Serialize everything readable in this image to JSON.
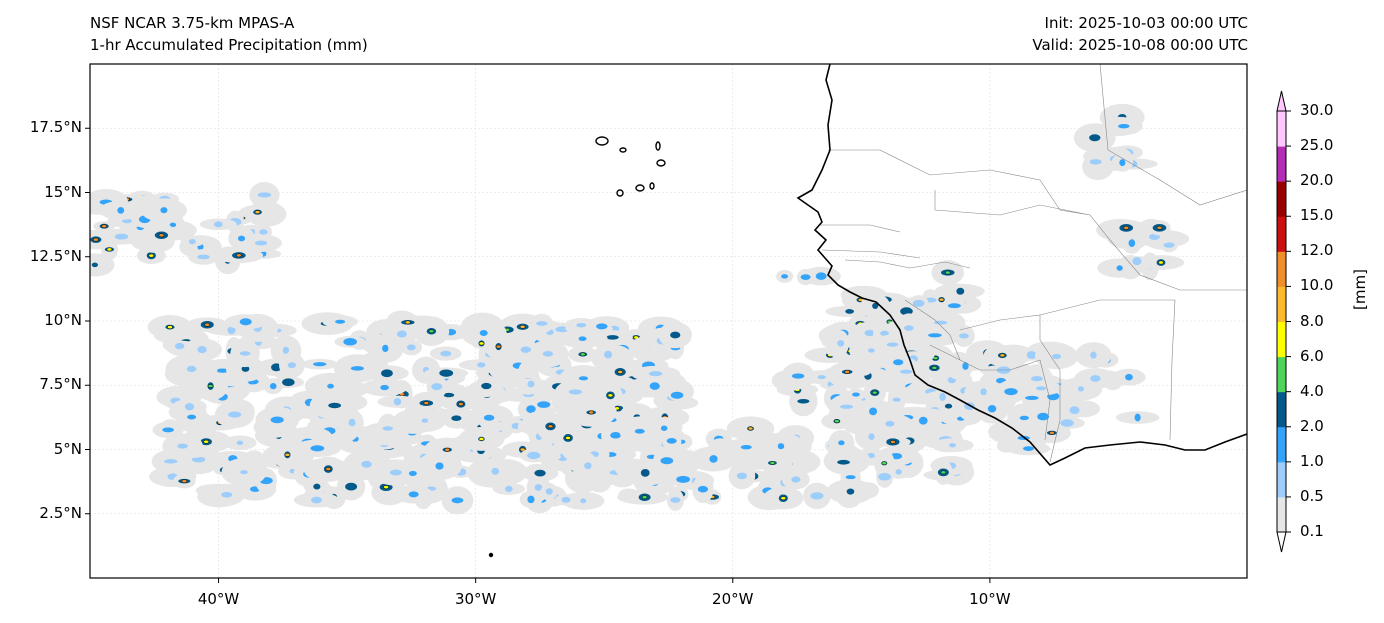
{
  "title": {
    "model": "NSF NCAR 3.75-km MPAS-A",
    "field": "1-hr Accumulated Precipitation (mm)",
    "init": "Init: 2025-10-03 00:00 UTC",
    "valid": "Valid: 2025-10-08 00:00 UTC"
  },
  "map": {
    "lon_range": [
      -45,
      0
    ],
    "lat_range": [
      0,
      20
    ],
    "lon_ticks": [
      {
        "value": -40,
        "label": "40°W"
      },
      {
        "value": -30,
        "label": "30°W"
      },
      {
        "value": -20,
        "label": "20°W"
      },
      {
        "value": -10,
        "label": "10°W"
      }
    ],
    "lat_ticks": [
      {
        "value": 17.5,
        "label": "17.5°N"
      },
      {
        "value": 15,
        "label": "15°N"
      },
      {
        "value": 12.5,
        "label": "12.5°N"
      },
      {
        "value": 10,
        "label": "10°N"
      },
      {
        "value": 7.5,
        "label": "7.5°N"
      },
      {
        "value": 5,
        "label": "5°N"
      },
      {
        "value": 2.5,
        "label": "2.5°N"
      }
    ]
  },
  "colorbar": {
    "label": "[mm]",
    "levels": [
      "0.1",
      "0.5",
      "1.0",
      "2.0",
      "4.0",
      "6.0",
      "8.0",
      "10.0",
      "12.0",
      "15.0",
      "20.0",
      "25.0",
      "30.0"
    ],
    "colors": [
      "#e6e6e6",
      "#9dcdfb",
      "#34a4fb",
      "#035a8a",
      "#4fd55b",
      "#ffff00",
      "#fbb92f",
      "#ef8f2a",
      "#cc1010",
      "#990000",
      "#b52db5",
      "#ffc8ff"
    ]
  }
}
